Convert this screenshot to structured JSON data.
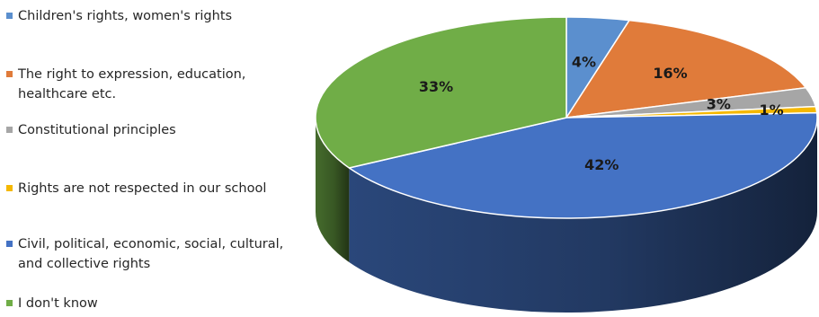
{
  "chart_data": {
    "type": "pie",
    "title": "",
    "legend_position": "left",
    "series": [
      {
        "label": "Children's rights, women's rights",
        "lines": [
          "Children's rights, women's rights"
        ],
        "value": 4,
        "data_label": "4%",
        "color": "#5b8fce"
      },
      {
        "label": "The right to expression, education, healthcare etc.",
        "lines": [
          "The right to expression, education,",
          "healthcare etc."
        ],
        "value": 16,
        "data_label": "16%",
        "color": "#e07b3a"
      },
      {
        "label": "Constitutional principles",
        "lines": [
          "Constitutional principles"
        ],
        "value": 3,
        "data_label": "3%",
        "color": "#a6a6a6"
      },
      {
        "label": "Rights are not respected in our school",
        "lines": [
          "Rights are not respected in our school"
        ],
        "value": 1,
        "data_label": "1%",
        "color": "#f5b800"
      },
      {
        "label": "Civil, political, economic, social, cultural, and collective rights",
        "lines": [
          "Civil, political, economic, social, cultural,",
          "and collective rights"
        ],
        "value": 42,
        "data_label": "42%",
        "color": "#4472c4"
      },
      {
        "label": "I don't know",
        "lines": [
          "I don't know"
        ],
        "value": 33,
        "data_label": "33%",
        "color": "#70ad47"
      }
    ]
  }
}
